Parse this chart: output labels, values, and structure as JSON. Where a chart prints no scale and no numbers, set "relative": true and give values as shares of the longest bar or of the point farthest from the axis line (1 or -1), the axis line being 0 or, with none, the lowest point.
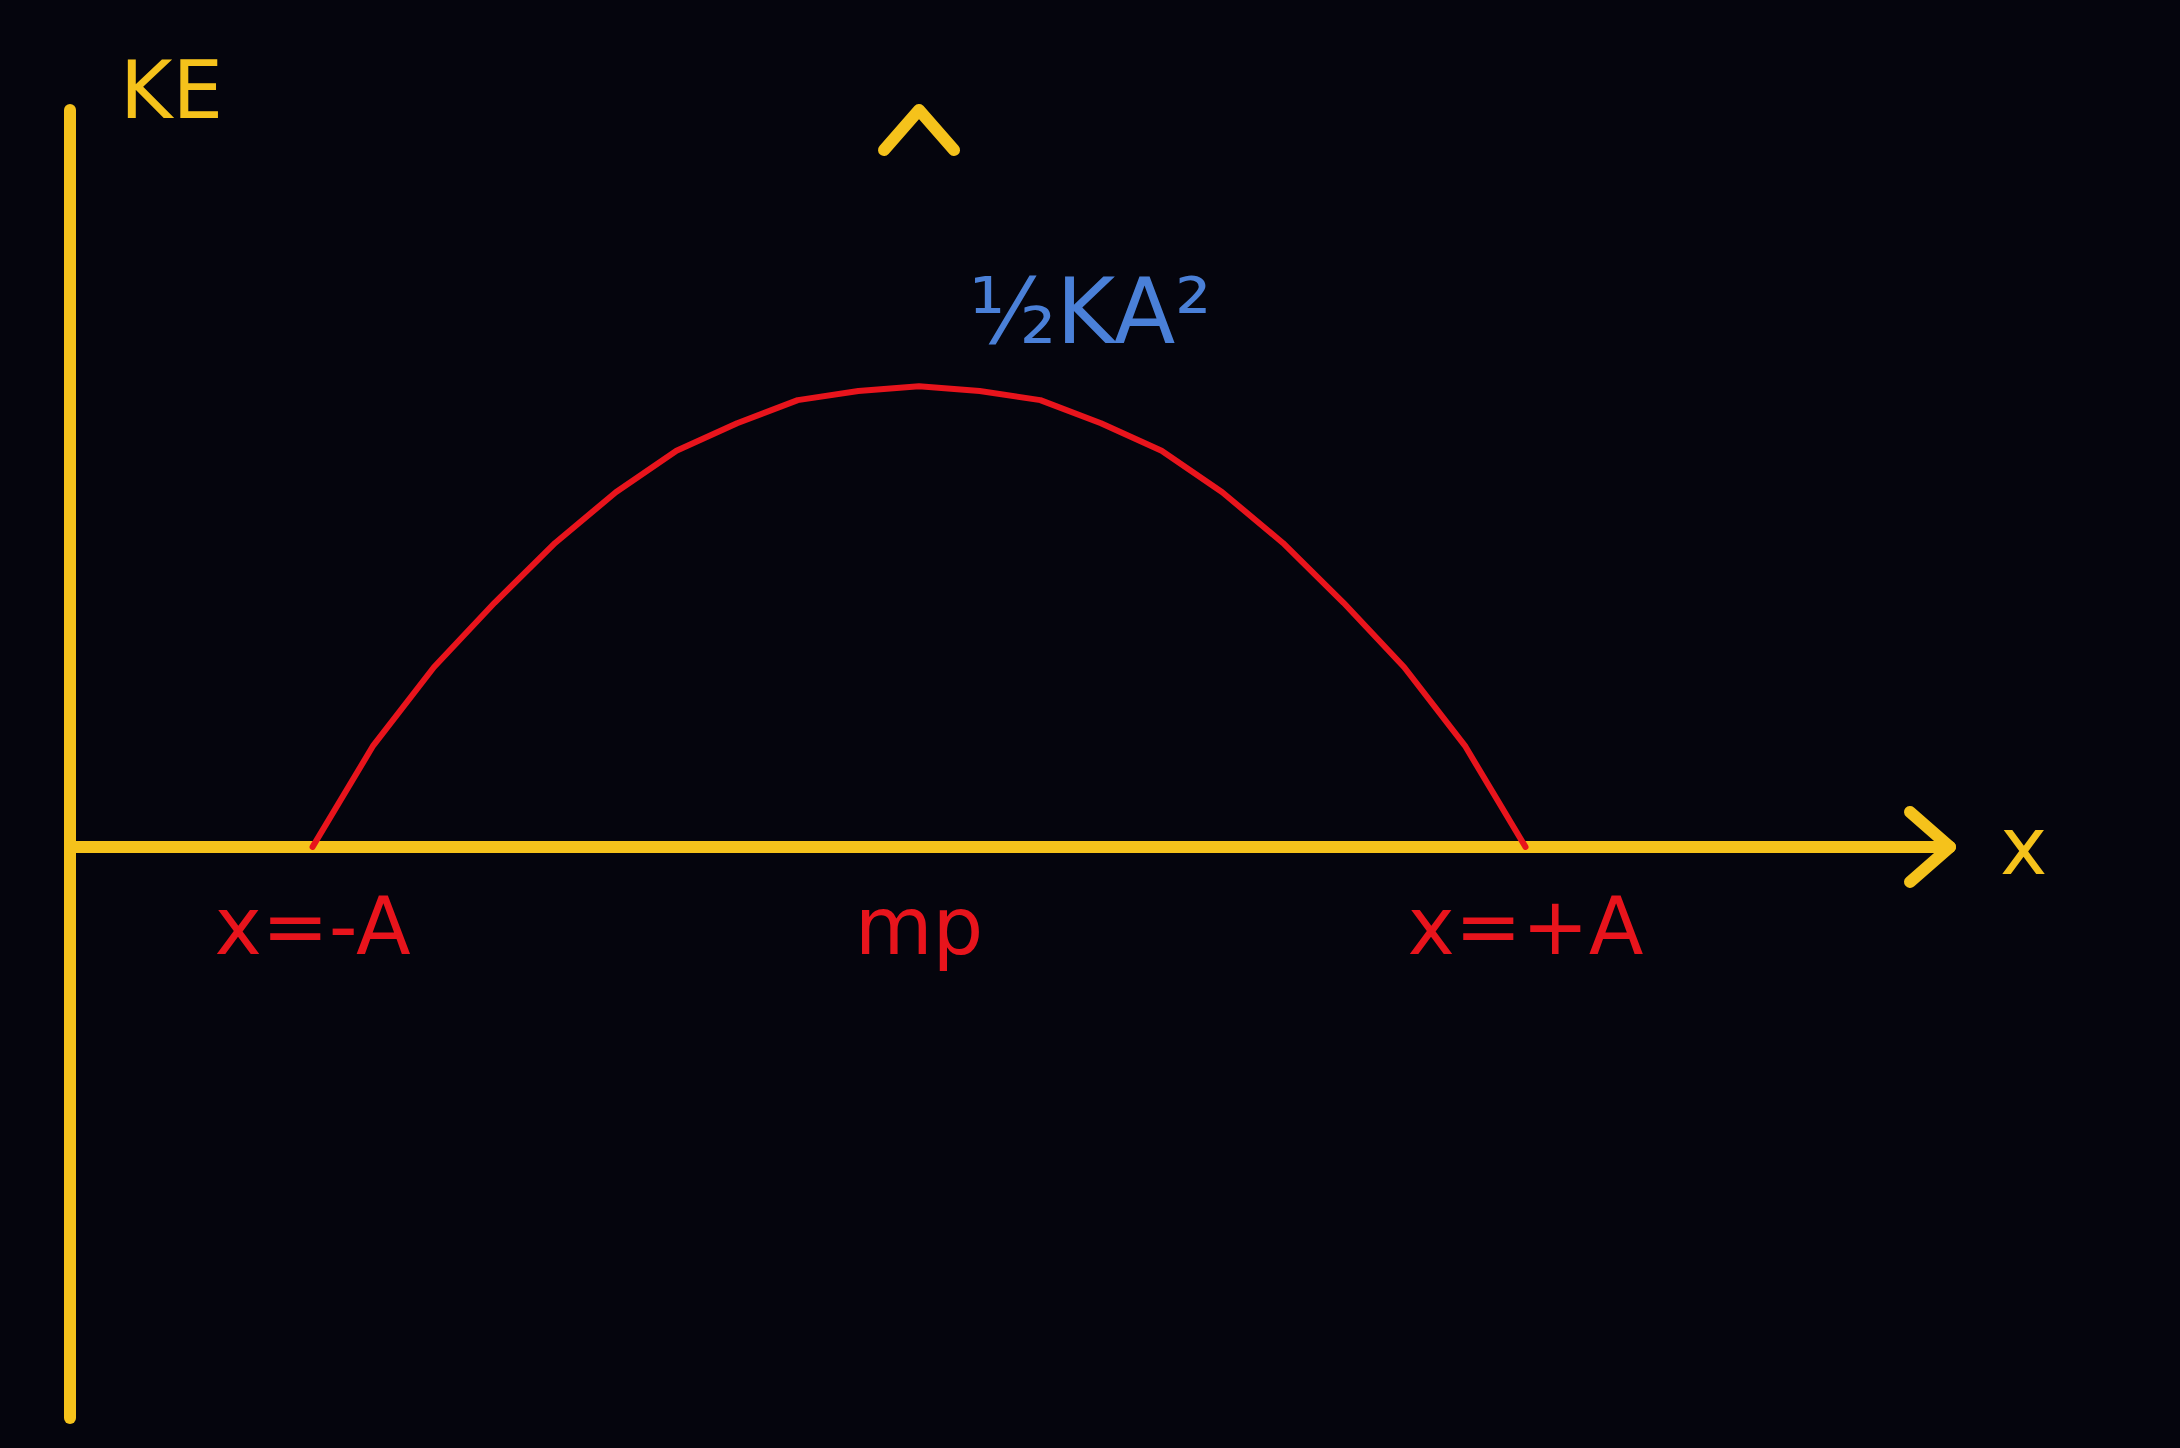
{
  "chart_data": {
    "type": "line",
    "relative": true,
    "xlabel": "x",
    "ylabel": "KE",
    "categories": [
      "x=-A",
      null,
      null,
      null,
      null,
      null,
      null,
      null,
      null,
      null,
      "mp",
      null,
      null,
      null,
      null,
      null,
      null,
      null,
      null,
      null,
      "x=+A"
    ],
    "annotations": [
      {
        "text": "½KA²",
        "x": "mp",
        "y": 1
      }
    ],
    "series": [
      {
        "color": "#e8141c",
        "values": [
          0,
          0.22,
          0.39,
          0.53,
          0.66,
          0.77,
          0.86,
          0.92,
          0.97,
          0.99,
          1,
          0.99,
          0.97,
          0.92,
          0.86,
          0.77,
          0.66,
          0.53,
          0.39,
          0.22,
          0
        ]
      }
    ],
    "marker": "none"
  }
}
